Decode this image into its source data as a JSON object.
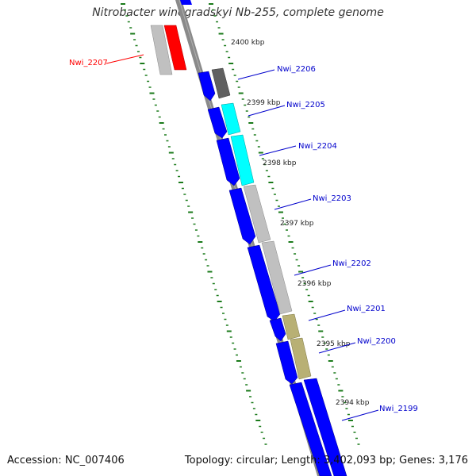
{
  "title": "Nitrobacter winogradskyi Nb-255, complete genome",
  "footer": {
    "accession": "Accession: NC_007406",
    "summary": "Topology: circular; Length: 3,402,093 bp; Genes: 3,176"
  },
  "ruler_ticks": [
    "2400 kbp",
    "2399 kbp",
    "2398 kbp",
    "2397 kbp",
    "2396 kbp",
    "2395 kbp",
    "2394 kbp"
  ],
  "gene_labels": [
    {
      "label": "Nwi_2207",
      "color": "#ff0000"
    },
    {
      "label": "Nwi_2206",
      "color": "#0000cc"
    },
    {
      "label": "Nwi_2205",
      "color": "#0000cc"
    },
    {
      "label": "Nwi_2204",
      "color": "#0000cc"
    },
    {
      "label": "Nwi_2203",
      "color": "#0000cc"
    },
    {
      "label": "Nwi_2202",
      "color": "#0000cc"
    },
    {
      "label": "Nwi_2201",
      "color": "#0000cc"
    },
    {
      "label": "Nwi_2200",
      "color": "#0000cc"
    },
    {
      "label": "Nwi_2199",
      "color": "#0000cc"
    }
  ],
  "colors": {
    "cds": "#0000ff",
    "backbone": "#808080",
    "gc_tick": "#1a7a1a",
    "highlight_gene": "#ff0000",
    "cog_grey": "#c0c0c0",
    "cog_dark": "#606060",
    "cog_cyan": "#00ffff",
    "cog_olive": "#b8b074"
  }
}
